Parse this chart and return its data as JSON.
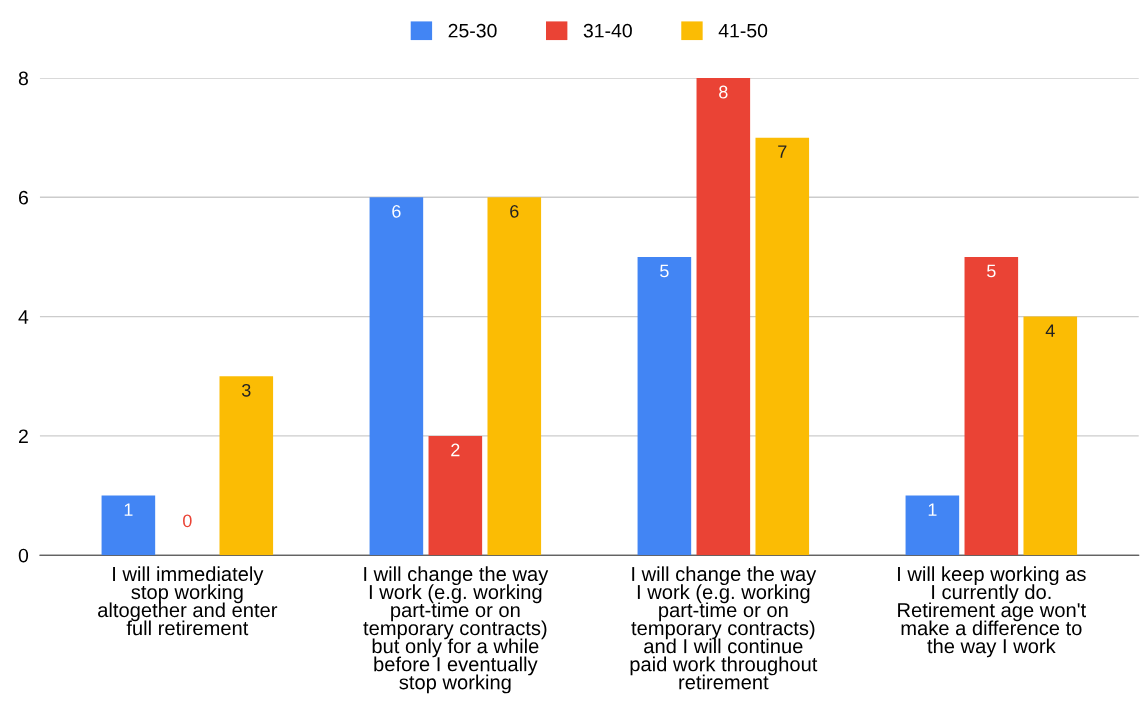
{
  "chart_data": {
    "type": "bar",
    "categories": [
      "I will immediately stop working altogether and enter full retirement",
      "I will change the way I work (e.g. working part-time or on temporary contracts) but only for a while before I eventually stop working",
      "I will change the way I work (e.g. working part-time or on temporary contracts) and I will continue paid work throughout retirement",
      "I will keep working as I currently do. Retirement age won't make a difference to the way I work"
    ],
    "series": [
      {
        "name": "25-30",
        "color": "#4285f4",
        "values": [
          1,
          6,
          5,
          1
        ]
      },
      {
        "name": "31-40",
        "color": "#ea4335",
        "values": [
          0,
          2,
          8,
          5
        ]
      },
      {
        "name": "41-50",
        "color": "#fbbc04",
        "values": [
          3,
          6,
          7,
          4
        ]
      }
    ],
    "ylim": [
      0,
      8
    ],
    "yticks": [
      0,
      2,
      4,
      6,
      8
    ],
    "grid": "y",
    "legend": "top",
    "data_labels": true
  }
}
